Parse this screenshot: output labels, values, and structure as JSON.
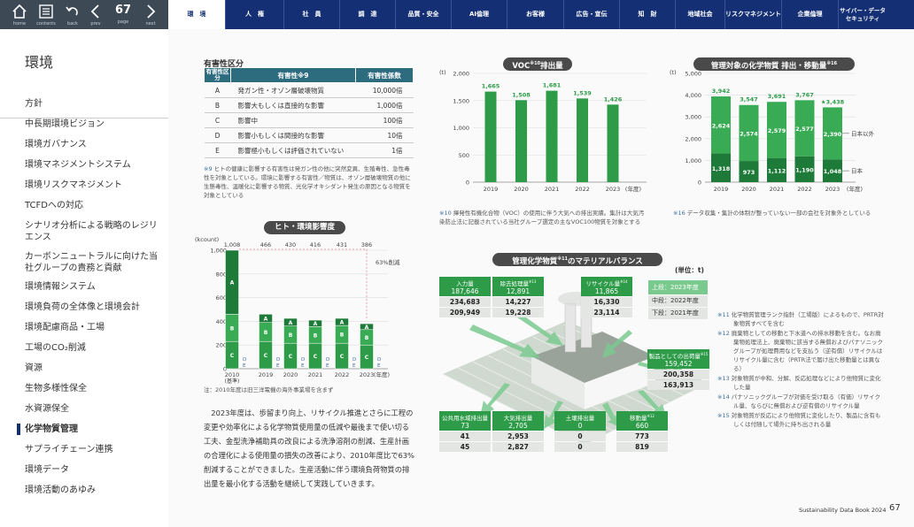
{
  "nav": {
    "home": "home",
    "contents": "contents",
    "back": "back",
    "prev": "prev",
    "page_label": "page",
    "next": "next",
    "page_number": "67"
  },
  "tabs": [
    "環　境",
    "人　権",
    "社　員",
    "調　達",
    "品質・安全",
    "AI倫理",
    "お客様",
    "広告・宣伝",
    "知　財",
    "地域社会",
    "リスクマネジメント",
    "企業倫理",
    "サイバー・データセキュリティ"
  ],
  "sidebar": {
    "title": "環境",
    "items": [
      "方針",
      "中長期環境ビジョン",
      "環境ガバナンス",
      "環境マネジメントシステム",
      "環境リスクマネジメント",
      "TCFDへの対応",
      "シナリオ分析による戦略のレジリエンス",
      "カーボンニュートラルに向けた当社グループの責務と貢献",
      "環境情報システム",
      "環境負荷の全体像と環境会計",
      "環境配慮商品・工場",
      "工場のCO₂削減",
      "資源",
      "生物多様性保全",
      "水資源保全",
      "化学物質管理",
      "サプライチェーン連携",
      "環境データ",
      "環境活動のあゆみ"
    ],
    "active_index": 15
  },
  "toxicity": {
    "heading": "有害性区分",
    "headers": [
      "有害性区分",
      "有害性※9",
      "有害性係数"
    ],
    "rows": [
      [
        "A",
        "発ガン性・オゾン層破壊物質",
        "10,000倍"
      ],
      [
        "B",
        "影響大もしくは直接的な影響",
        "1,000倍"
      ],
      [
        "C",
        "影響中",
        "100倍"
      ],
      [
        "D",
        "影響小もしくは間接的な影響",
        "10倍"
      ],
      [
        "E",
        "影響極小もしくは評価されていない",
        "1倍"
      ]
    ],
    "note_mark": "※9",
    "note": "ヒトの健康に影響する有害性は発ガン性の他に突然変異、生殖毒性、急性毒性を対象としている。環境に影響する有害性／物質は、オゾン層破壊物質の他に生態毒性、温暖化に影響する物質、光化学オキシダント発生の原因となる物質を対象としている"
  },
  "impact_chart": {
    "title": "ヒト・環境影響度",
    "ylabel": "(kcount)",
    "yticks": [
      "0",
      "200",
      "400",
      "600",
      "800",
      "1,000"
    ],
    "reduction_label": "63%削減",
    "base_label": "(基準)",
    "xunit": "(年度)",
    "footnote": "注：2010年度は旧三洋電機の海外事業場を含まず",
    "totals": [
      "1,008",
      "466",
      "430",
      "416",
      "431",
      "386"
    ]
  },
  "chart_data": [
    {
      "type": "bar",
      "title": "ヒト・環境影響度",
      "ylabel": "(kcount)",
      "categories": [
        "2010",
        "2019",
        "2020",
        "2021",
        "2022",
        "2023"
      ],
      "ylim": [
        0,
        1000
      ],
      "series": [
        {
          "name": "C",
          "values": [
            230,
            230,
            215,
            215,
            215,
            200
          ]
        },
        {
          "name": "B",
          "values": [
            230,
            160,
            145,
            140,
            150,
            130
          ]
        },
        {
          "name": "A",
          "values": [
            540,
            70,
            65,
            55,
            60,
            50
          ]
        },
        {
          "name": "D",
          "values": [
            4,
            4,
            3,
            3,
            3,
            3
          ]
        },
        {
          "name": "E",
          "values": [
            4,
            2,
            2,
            3,
            3,
            3
          ]
        }
      ],
      "totals": [
        1008,
        466,
        430,
        416,
        431,
        386
      ]
    },
    {
      "type": "bar",
      "title": "VOC※10排出量",
      "ylabel": "(t)",
      "categories": [
        "2019",
        "2020",
        "2021",
        "2022",
        "2023"
      ],
      "values": [
        1665,
        1508,
        1681,
        1539,
        1426
      ],
      "ylim": [
        0,
        2000
      ]
    },
    {
      "type": "bar",
      "title": "管理対象の化学物質 排出・移動量※16",
      "ylabel": "(t)",
      "categories": [
        "2019",
        "2020",
        "2021",
        "2022",
        "2023"
      ],
      "ylim": [
        0,
        5000
      ],
      "series": [
        {
          "name": "日本",
          "values": [
            1318,
            973,
            1112,
            1190,
            1048
          ]
        },
        {
          "name": "日本以外",
          "values": [
            2624,
            2574,
            2579,
            2577,
            2390
          ]
        }
      ],
      "totals": [
        3942,
        3547,
        3691,
        3767,
        3438
      ]
    }
  ],
  "voc": {
    "title": "VOC",
    "sup": "※10",
    "title_suffix": "排出量",
    "ylabel": "(t)",
    "yticks": [
      "0",
      "500",
      "1,000",
      "1,500",
      "2,000"
    ],
    "labels": [
      "1,665",
      "1,508",
      "1,681",
      "1,539",
      "1,426"
    ],
    "xunit": "(年度)",
    "note_mark": "※10",
    "note": "揮発性有機化合物（VOC）の使用に伴う大気への排出実績。集計は大気汚染防止法に記載されている当社グループ選定の主なVOC100物質を対象とする"
  },
  "emission": {
    "title": "管理対象の化学物質 排出・移動量",
    "sup": "※16",
    "ylabel": "(t)",
    "yticks": [
      "0",
      "1,000",
      "2,000",
      "3,000",
      "4,000",
      "5,000"
    ],
    "top_labels": [
      "3,942",
      "3,547",
      "3,691",
      "3,767",
      "3,438"
    ],
    "upper_labels": [
      "2,624",
      "2,574",
      "2,579",
      "2,577",
      "2,390"
    ],
    "lower_labels": [
      "1,318",
      "973",
      "1,112",
      "1,190",
      "1,048"
    ],
    "legend_upper": "日本以外",
    "legend_lower": "日本",
    "star": "★",
    "xunit": "(年度)",
    "note_mark": "※16",
    "note": "データ収集・集計の体制が整っていない一部の会社を対象外としている"
  },
  "balance": {
    "title": "管理化学物質",
    "sup": "※11",
    "title_suffix": "のマテリアルバランス",
    "unit": "(単位：t)",
    "legend": [
      "上段：2023年度",
      "中段：2022年度",
      "下段：2021年度"
    ],
    "boxes": [
      {
        "label": "入力量",
        "sup": "",
        "vals": [
          "187,646",
          "234,683",
          "209,949"
        ]
      },
      {
        "label": "除去処理量",
        "sup": "※13",
        "vals": [
          "12,891",
          "14,227",
          "19,228"
        ]
      },
      {
        "label": "リサイクル量",
        "sup": "※14",
        "vals": [
          "11,865",
          "16,330",
          "23,114"
        ]
      },
      {
        "label": "製品としての出荷量",
        "sup": "※15",
        "vals": [
          "159,452",
          "200,358",
          "163,913"
        ]
      },
      {
        "label": "公共用水域排出量",
        "sup": "",
        "vals": [
          "73",
          "41",
          "45"
        ]
      },
      {
        "label": "大気排出量",
        "sup": "",
        "vals": [
          "2,705",
          "2,953",
          "2,827"
        ]
      },
      {
        "label": "土壌排出量",
        "sup": "",
        "vals": [
          "0",
          "0",
          "0"
        ]
      },
      {
        "label": "移動量",
        "sup": "※12",
        "vals": [
          "660",
          "773",
          "819"
        ]
      }
    ],
    "notes": [
      {
        "mark": "※11",
        "text": "化学物質管理ランク指針（工場版）によるもので、PRTR対象物質すべてを含む"
      },
      {
        "mark": "※12",
        "text": "廃棄物としての移動と下水道への排水移動を含む。なお廃棄物処理法上、廃棄物に該当する無償およびパナソニックグループが処理費用などを支払う（逆有償）リサイクルはリサイクル量に含む（PRTR法で届け出た移動量とは異なる）"
      },
      {
        "mark": "※13",
        "text": "対象物質が中和、分解、反応処理などにより他物質に変化した量"
      },
      {
        "mark": "※14",
        "text": "パナソニックグループが対価を受け取る（有価）リサイクル量、ならびに無償および逆有償のリサイクル量"
      },
      {
        "mark": "※15",
        "text": "対象物質が反応により他物質に変化したり、製品に含有もしくは付随して場外に持ち出される量"
      }
    ]
  },
  "body_text": "2023年度は、歩留まり向上、リサイクル推進とさらに工程の変更や効率化による化学物質使用量の低減や最後まで使い切る工夫、金型洗浄補助具の改良による洗浄溶剤の削減、生産計画の合理化による使用量の損失の改善により、2010年度比で63%削減することができました。生産活動に伴う環境負荷物質の排出量を最小化する活動を継続して実践していきます。",
  "footer": {
    "book": "Sustainability Data Book 2024",
    "page": "67"
  },
  "colors": {
    "navy": "#142f73",
    "green": "#2e9b48",
    "dark_green": "#1e7a38",
    "light_green": "#7ac98f",
    "teal": "#2d6b7e"
  }
}
